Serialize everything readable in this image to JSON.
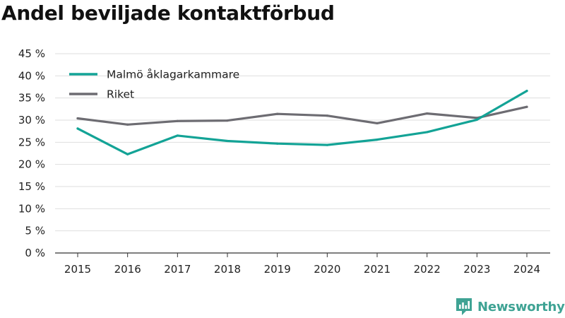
{
  "chart_data": {
    "type": "line",
    "title": "Andel beviljade kontaktförbud",
    "x": [
      "2015",
      "2016",
      "2017",
      "2018",
      "2019",
      "2020",
      "2021",
      "2022",
      "2023",
      "2024"
    ],
    "series": [
      {
        "name": "Malmö åklagarkammare",
        "color": "#13a396",
        "values": [
          28.1,
          22.3,
          26.5,
          25.3,
          24.7,
          24.4,
          25.6,
          27.3,
          30.1,
          36.6
        ]
      },
      {
        "name": "Riket",
        "color": "#6d6c72",
        "values": [
          30.4,
          29.0,
          29.8,
          29.9,
          31.4,
          31.0,
          29.3,
          31.5,
          30.5,
          33.0
        ]
      }
    ],
    "ylim": [
      0,
      45
    ],
    "yticks": [
      0,
      5,
      10,
      15,
      20,
      25,
      30,
      35,
      40,
      45
    ],
    "ytick_labels": [
      "0 %",
      "5 %",
      "10 %",
      "15 %",
      "20 %",
      "25 %",
      "30 %",
      "35 %",
      "40 %",
      "45 %"
    ],
    "grid": true,
    "legend_position": "top-left"
  },
  "branding": {
    "name": "Newsworthy",
    "color": "#3fa394",
    "icon": "newsworthy-logo-icon"
  }
}
